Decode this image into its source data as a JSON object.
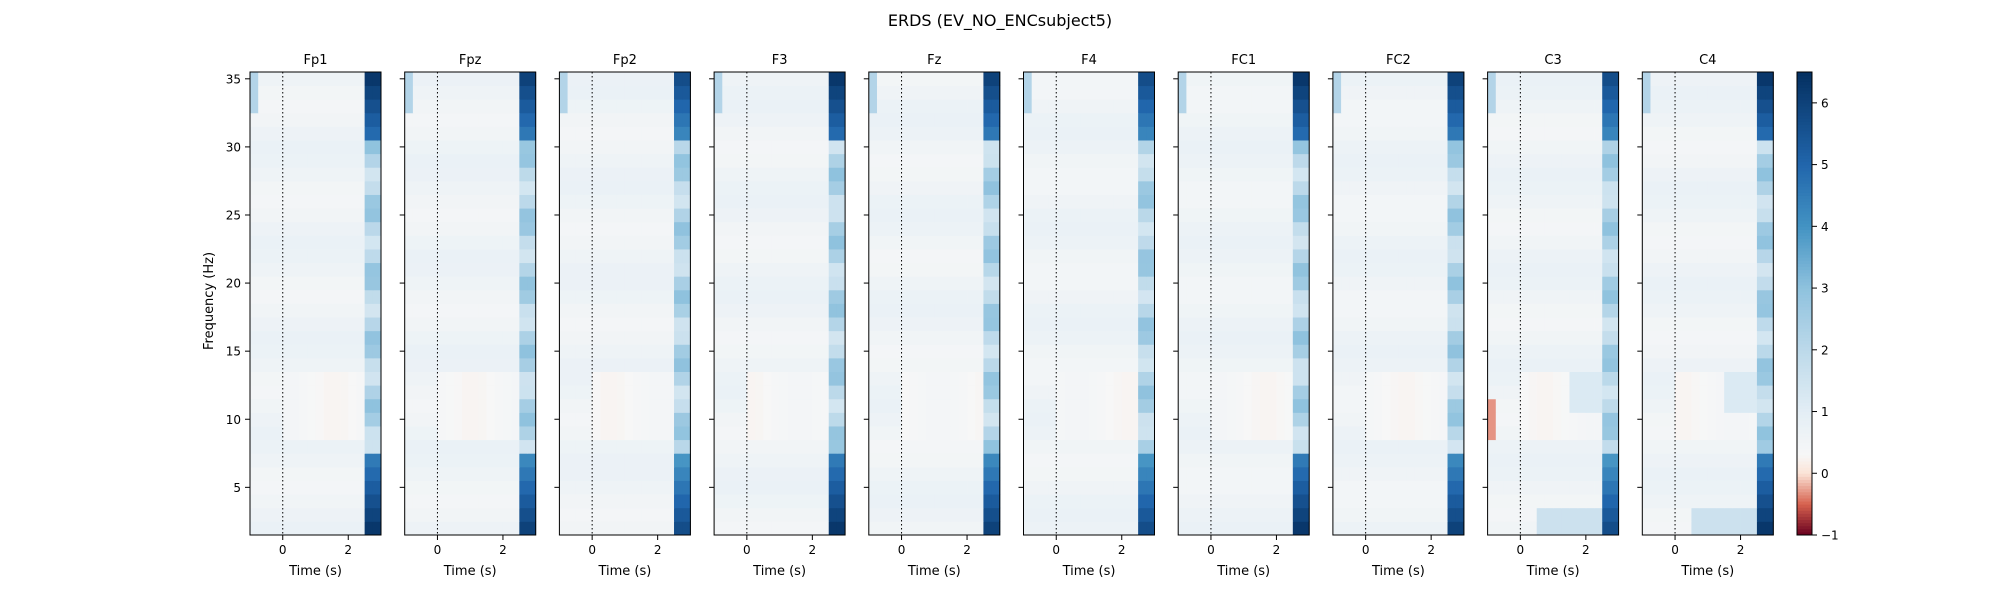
{
  "chart_data": {
    "type": "heatmap",
    "title": "ERDS (EV_NO_ENCsubject5)",
    "ylabel": "Frequency (Hz)",
    "xlabel": "Time (s)",
    "xlim": [
      -1,
      3
    ],
    "ylim": [
      1.5,
      35.5
    ],
    "x_ticks": [
      0,
      2
    ],
    "y_ticks": [
      5,
      10,
      15,
      20,
      25,
      30,
      35
    ],
    "event_marker_time": 0,
    "frequencies": [
      2,
      3,
      4,
      5,
      6,
      7,
      8,
      9,
      10,
      11,
      12,
      13,
      14,
      15,
      16,
      17,
      18,
      19,
      20,
      21,
      22,
      23,
      24,
      25,
      26,
      27,
      28,
      29,
      30,
      31,
      32,
      33,
      34,
      35
    ],
    "colormap": "RdBu",
    "colorbar": {
      "vmin": -1,
      "vmax": 6.5,
      "ticks": [
        -1,
        0,
        1,
        2,
        3,
        4,
        5,
        6
      ],
      "stops": [
        {
          "v": -1,
          "color": "#67001f"
        },
        {
          "v": -0.5,
          "color": "#d6604d"
        },
        {
          "v": 0,
          "color": "#fbe3d6"
        },
        {
          "v": 0.3,
          "color": "#f7f7f7"
        },
        {
          "v": 1,
          "color": "#e3eef5"
        },
        {
          "v": 2,
          "color": "#bcd9ea"
        },
        {
          "v": 3,
          "color": "#8fc2de"
        },
        {
          "v": 4,
          "color": "#4393c3"
        },
        {
          "v": 5,
          "color": "#2166ac"
        },
        {
          "v": 6.5,
          "color": "#053061"
        }
      ]
    },
    "channels": [
      "Fp1",
      "Fpz",
      "Fp2",
      "F3",
      "Fz",
      "F4",
      "FC1",
      "FC2",
      "C3",
      "C4"
    ]
  }
}
